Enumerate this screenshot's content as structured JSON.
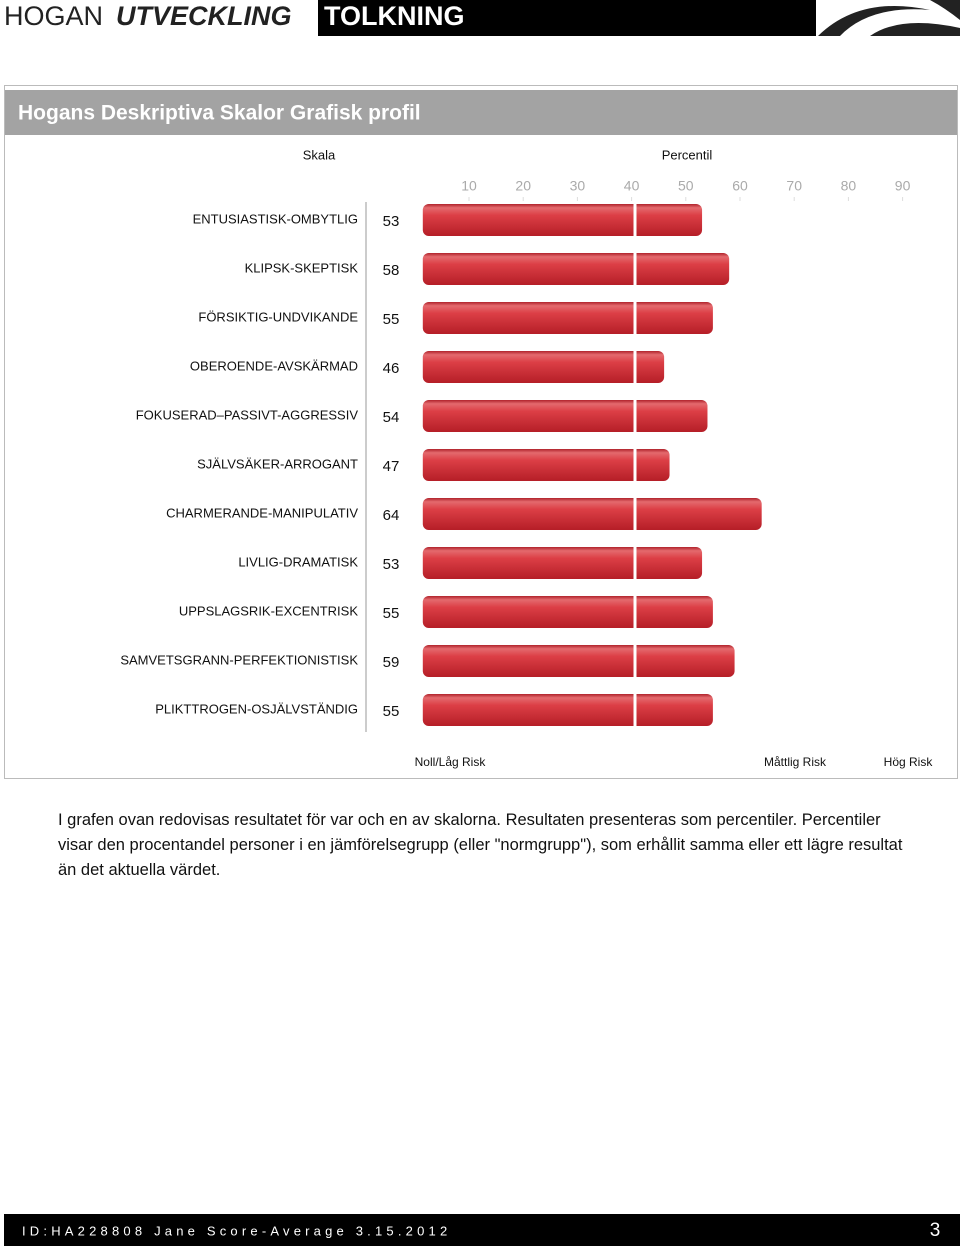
{
  "header": {
    "brand_light": "HOGAN",
    "brand_bold": "UTVECKLING",
    "section": "TOLKNING"
  },
  "chart_data": {
    "type": "bar",
    "orientation": "horizontal",
    "title": "Hogans Deskriptiva Skalor Grafisk profil",
    "category_header": "Skala",
    "x_label": "Percentil",
    "categories": [
      "ENTUSIASTISK-OMBYTLIG",
      "KLIPSK-SKEPTISK",
      "FÖRSIKTIG-UNDVIKANDE",
      "OBEROENDE-AVSKÄRMAD",
      "FOKUSERAD–PASSIVT-AGGRESSIV",
      "SJÄLVSÄKER-ARROGANT",
      "CHARMERANDE-MANIPULATIV",
      "LIVLIG-DRAMATISK",
      "UPPSLAGSRIK-EXCENTRISK",
      "SAMVETSGRANN-PERFEKTIONISTISK",
      "PLIKTTROGEN-OSJÄLVSTÄNDIG"
    ],
    "values": [
      53,
      58,
      55,
      46,
      54,
      47,
      64,
      53,
      55,
      59,
      55
    ],
    "color": "#d7353c",
    "xlim": [
      0,
      100
    ],
    "xticks": [
      10,
      20,
      30,
      40,
      50,
      60,
      70,
      80,
      90
    ],
    "zones": [
      "Noll/Låg Risk",
      "Måttlig Risk",
      "Hög Risk"
    ]
  },
  "body": {
    "text": "I grafen ovan redovisas resultatet för var och en av skalorna. Resultaten presenteras som percentiler. Percentiler visar den procentandel personer i en jämförelsegrupp (eller \"normgrupp\"), som erhållit samma eller ett lägre resultat än det aktuella värdet."
  },
  "footer": {
    "id": "ID:HA228808 Jane Score-Average 3.15.2012",
    "page": "3"
  }
}
